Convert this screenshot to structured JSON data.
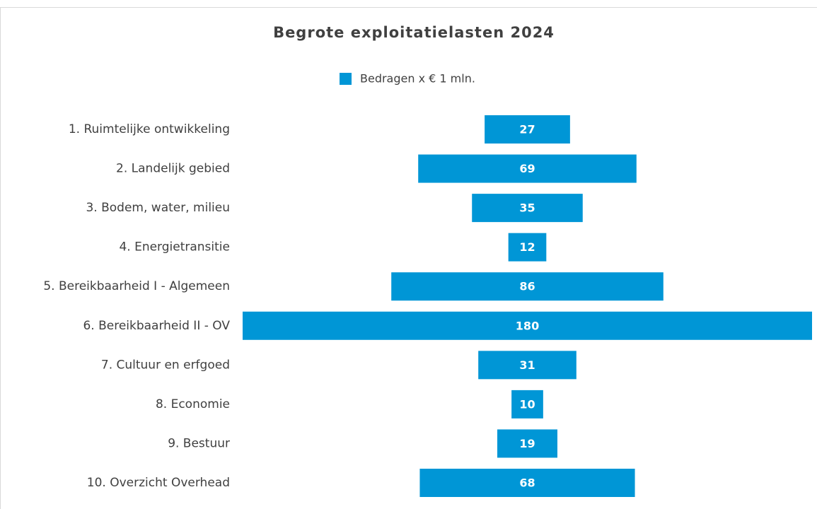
{
  "chart_data": {
    "type": "funnel",
    "title": "Begrote exploitatielasten 2024",
    "categories": [
      "1. Ruimtelijke ontwikkeling",
      "2. Landelijk gebied",
      "3. Bodem, water, milieu",
      "4. Energietransitie",
      "5. Bereikbaarheid I - Algemeen",
      "6. Bereikbaarheid II - OV",
      "7. Cultuur en erfgoed",
      "8. Economie",
      "9. Bestuur",
      "10. Overzicht Overhead"
    ],
    "series": [
      {
        "name": "Bedragen x € 1 mln.",
        "color": "#0096d6",
        "values": [
          27,
          69,
          35,
          12,
          86,
          180,
          31,
          10,
          19,
          68
        ]
      }
    ],
    "legend": "top"
  }
}
